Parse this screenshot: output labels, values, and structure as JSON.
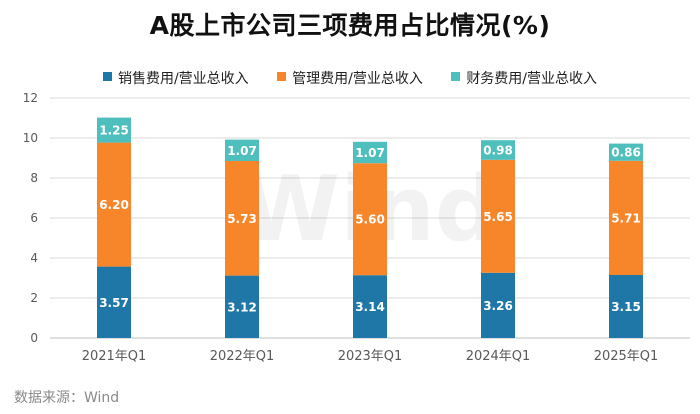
{
  "title": "A股上市公司三项费用占比情况(%)",
  "source": "数据来源：Wind",
  "watermark": "Wind",
  "colors": {
    "sales": "#1f77a8",
    "mgmt": "#f7862a",
    "fin": "#4fbfbd",
    "grid": "#d9d9d9",
    "axis_text": "#595959"
  },
  "chart_data": {
    "type": "bar",
    "stacked": true,
    "categories": [
      "2021年Q1",
      "2022年Q1",
      "2023年Q1",
      "2024年Q1",
      "2025年Q1"
    ],
    "series": [
      {
        "name": "销售费用/营业总收入",
        "color": "#1f77a8",
        "values": [
          3.57,
          3.12,
          3.14,
          3.26,
          3.15
        ]
      },
      {
        "name": "管理费用/营业总收入",
        "color": "#f7862a",
        "values": [
          6.2,
          5.73,
          5.6,
          5.65,
          5.71
        ]
      },
      {
        "name": "财务费用/营业总收入",
        "color": "#4fbfbd",
        "values": [
          1.25,
          1.07,
          1.07,
          0.98,
          0.86
        ]
      }
    ],
    "ylim": [
      0,
      12
    ],
    "yticks": [
      0,
      2,
      4,
      6,
      8,
      10,
      12
    ],
    "grid": true,
    "legend": "top",
    "data_labels": true
  }
}
